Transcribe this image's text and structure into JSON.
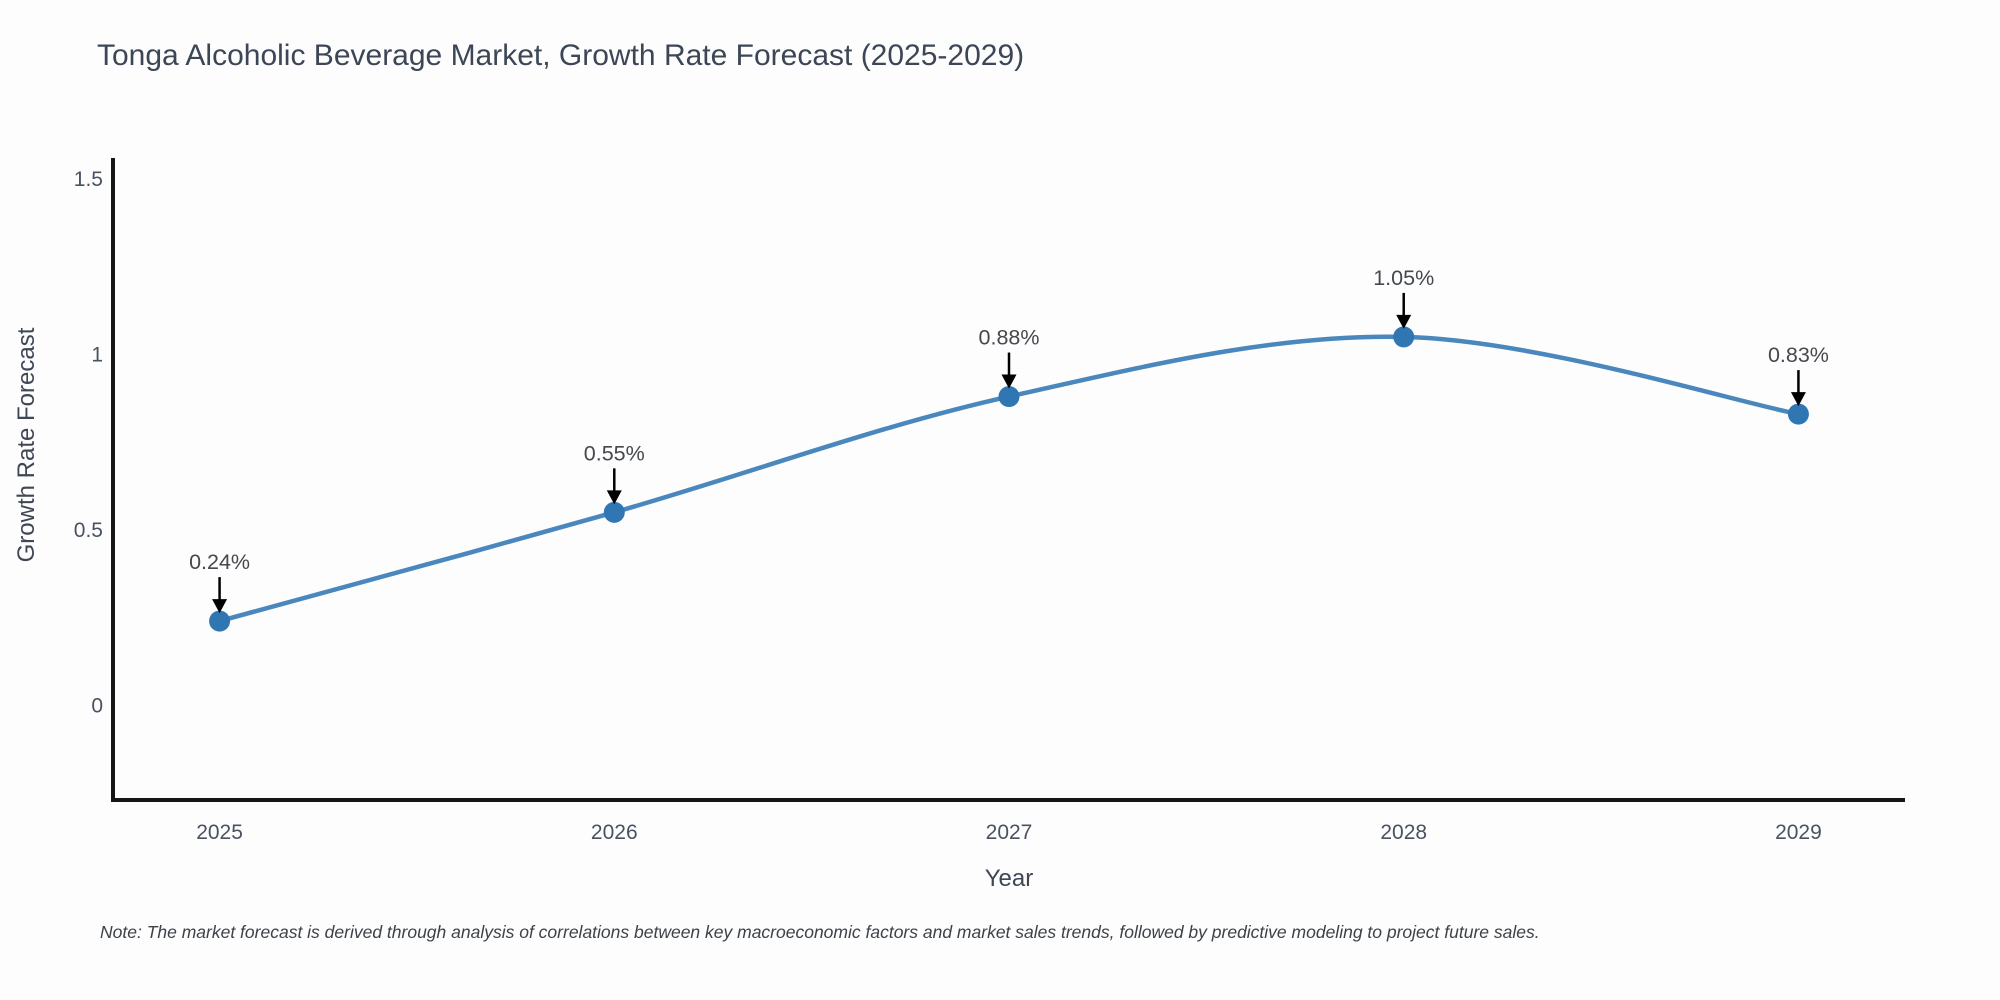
{
  "title": "Tonga Alcoholic Beverage Market, Growth Rate Forecast (2025-2029)",
  "note": "Note: The market forecast is derived through analysis of correlations between key macroeconomic factors and market sales trends, followed by predictive modeling to project future sales.",
  "chart_data": {
    "type": "line",
    "line_shape": "spline",
    "title": "Tonga Alcoholic Beverage Market, Growth Rate Forecast (2025-2029)",
    "xlabel": "Year",
    "ylabel": "Growth Rate Forecast",
    "x": [
      2025,
      2026,
      2027,
      2028,
      2029
    ],
    "values": [
      0.24,
      0.55,
      0.88,
      1.05,
      0.83
    ],
    "point_labels": [
      "0.24%",
      "0.55%",
      "0.88%",
      "1.05%",
      "0.83%"
    ],
    "xtick_labels": [
      "2025",
      "2026",
      "2027",
      "2028",
      "2029"
    ],
    "yticks": [
      0,
      0.5,
      1,
      1.5
    ],
    "ytick_labels": [
      "0",
      "0.5",
      "1",
      "1.5"
    ],
    "xlim": [
      2024.73,
      2029.27
    ],
    "ylim": [
      -0.27,
      1.56
    ],
    "grid": false,
    "legend": "none",
    "annotation_style": "black-arrow-down",
    "colors": {
      "line": "#4a87bd",
      "marker": "#2f76b3",
      "axis": "#151515",
      "arrow": "#000000",
      "title_text": "#3c4656",
      "tick_text": "#4a5261",
      "axis_title_text": "#3f4754",
      "point_label_text": "#45484d",
      "note_text": "#3d4248",
      "background": "#fdfdfd"
    }
  }
}
